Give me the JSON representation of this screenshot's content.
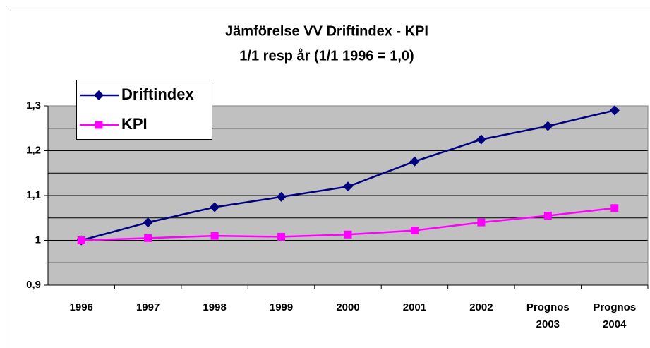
{
  "chart_data": {
    "type": "line",
    "title": "Jämförelse VV Driftindex - KPI",
    "subtitle": "1/1 resp år (1/1 1996 = 1,0)",
    "categories": [
      "1996",
      "1997",
      "1998",
      "1999",
      "2000",
      "2001",
      "2002",
      "Prognos 2003",
      "Prognos 2004"
    ],
    "series": [
      {
        "name": "Driftindex",
        "color": "#000080",
        "marker": "diamond",
        "values": [
          1.0,
          1.04,
          1.074,
          1.097,
          1.12,
          1.176,
          1.225,
          1.255,
          1.29
        ]
      },
      {
        "name": "KPI",
        "color": "#ff00ff",
        "marker": "square",
        "values": [
          1.0,
          1.005,
          1.01,
          1.008,
          1.013,
          1.022,
          1.04,
          1.055,
          1.072
        ]
      }
    ],
    "ylim": [
      0.9,
      1.3
    ],
    "yticks": [
      {
        "value": 0.9,
        "label": "0,9"
      },
      1,
      {
        "value": 1.1,
        "label": "1,1"
      },
      {
        "value": 1.2,
        "label": "1,2"
      },
      {
        "value": 1.3,
        "label": "1,3"
      }
    ],
    "minor_yticks": [
      0.95,
      1.05,
      1.15,
      1.25
    ],
    "grid": true,
    "legend": "top-left"
  }
}
